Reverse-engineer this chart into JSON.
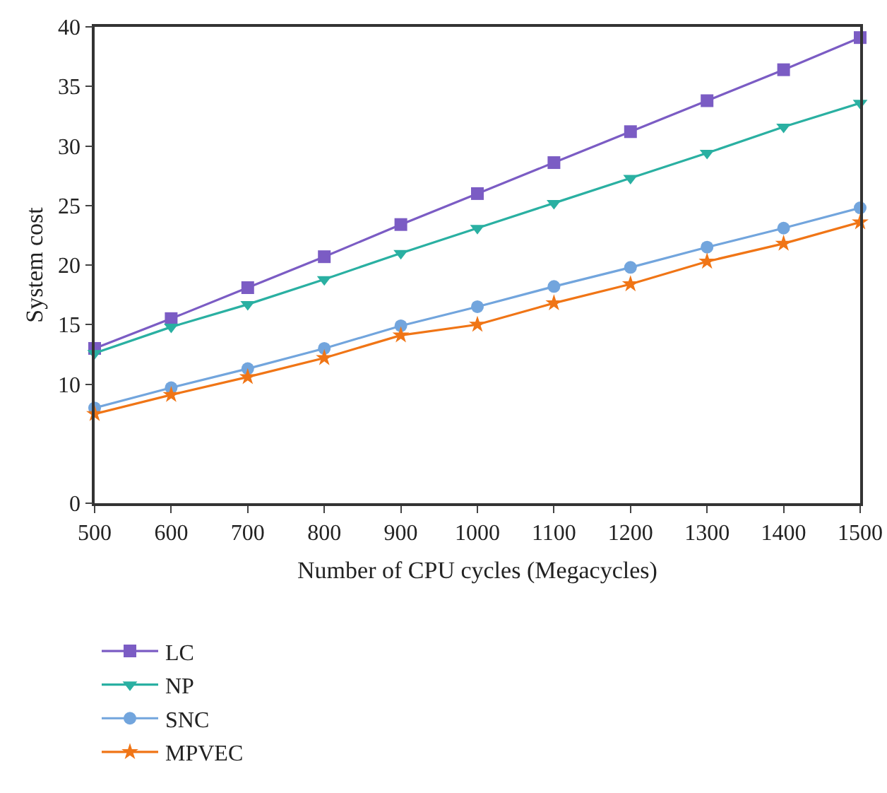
{
  "chart_data": {
    "type": "line",
    "xlabel": "Number of CPU cycles (Megacycles)",
    "ylabel": "System cost",
    "x": [
      500,
      600,
      700,
      800,
      900,
      1000,
      1100,
      1200,
      1300,
      1400,
      1500
    ],
    "xlim": [
      500,
      1500
    ],
    "xticks": [
      500,
      600,
      700,
      800,
      900,
      1000,
      1100,
      1200,
      1300,
      1400,
      1500
    ],
    "ylim": [
      0,
      40
    ],
    "yticks": [
      0,
      10,
      15,
      20,
      25,
      30,
      35,
      40
    ],
    "grid": false,
    "legend": "bottom left",
    "line_style": "solid",
    "series": [
      {
        "name": "LC",
        "color": "#7b5cc4",
        "marker": "square",
        "values": [
          13.0,
          15.5,
          18.1,
          20.7,
          23.4,
          26.0,
          28.6,
          31.2,
          33.8,
          36.4,
          39.1
        ]
      },
      {
        "name": "NP",
        "color": "#2ab0a2",
        "marker": "triangle",
        "values": [
          12.6,
          14.8,
          16.7,
          18.8,
          21.0,
          23.1,
          25.2,
          27.3,
          29.4,
          31.6,
          33.6
        ]
      },
      {
        "name": "SNC",
        "color": "#72a5dd",
        "marker": "circle",
        "values": [
          8.0,
          9.7,
          11.3,
          13.0,
          14.9,
          16.5,
          18.2,
          19.8,
          21.5,
          23.1,
          24.8
        ]
      },
      {
        "name": "MPVEC",
        "color": "#f07516",
        "marker": "star",
        "values": [
          7.5,
          9.1,
          10.6,
          12.2,
          14.1,
          15.0,
          16.8,
          18.4,
          20.3,
          21.8,
          23.6
        ]
      }
    ]
  }
}
